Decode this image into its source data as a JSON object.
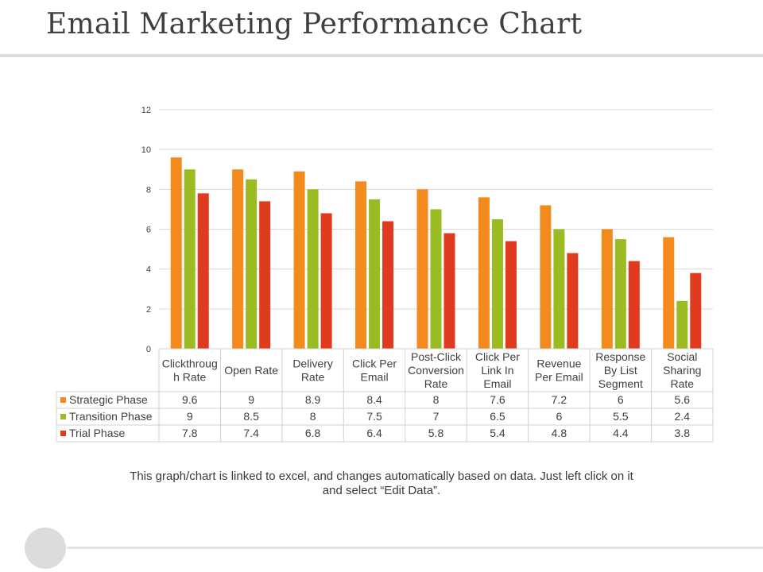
{
  "slide": {
    "title": "Email Marketing Performance Chart",
    "note": "This graph/chart is linked to excel, and changes automatically based on data. Just left click on it and select “Edit Data”."
  },
  "chart_data": {
    "type": "bar",
    "title": "",
    "xlabel": "",
    "ylabel": "",
    "ylim": [
      0,
      12
    ],
    "yticks": [
      0,
      2,
      4,
      6,
      8,
      10,
      12
    ],
    "grid": true,
    "legend_placement": "data-table-left",
    "categories": [
      "Clickthrough Rate",
      "Open Rate",
      "Delivery Rate",
      "Click Per Email",
      "Post-Click Conversion Rate",
      "Click Per Link In Email",
      "Revenue Per Email",
      "Response By List Segment",
      "Social Sharing Rate"
    ],
    "category_label_lines": [
      [
        "Clickthroug",
        "h Rate"
      ],
      [
        "Open Rate"
      ],
      [
        "Delivery",
        "Rate"
      ],
      [
        "Click Per",
        "Email"
      ],
      [
        "Post-Click",
        "Conversion",
        "Rate"
      ],
      [
        "Click Per",
        "Link In",
        "Email"
      ],
      [
        "Revenue",
        "Per Email"
      ],
      [
        "Response",
        "By List",
        "Segment"
      ],
      [
        "Social",
        "Sharing",
        "Rate"
      ]
    ],
    "series": [
      {
        "name": "Strategic Phase",
        "color": "#f28a1e",
        "values": [
          9.6,
          9,
          8.9,
          8.4,
          8,
          7.6,
          7.2,
          6,
          5.6
        ]
      },
      {
        "name": "Transition Phase",
        "color": "#9bbb22",
        "values": [
          9,
          8.5,
          8,
          7.5,
          7,
          6.5,
          6,
          5.5,
          2.4
        ]
      },
      {
        "name": "Trial Phase",
        "color": "#e03b1e",
        "values": [
          7.8,
          7.4,
          6.8,
          6.4,
          5.8,
          5.4,
          4.8,
          4.4,
          3.8
        ]
      }
    ]
  }
}
